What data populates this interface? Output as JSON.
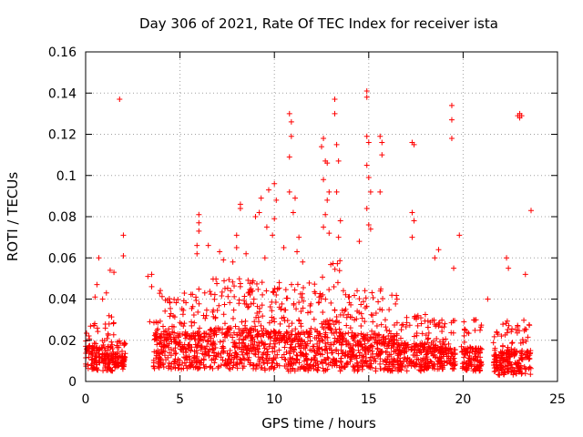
{
  "chart_data": {
    "type": "scatter",
    "title": "Day 306 of 2021, Rate Of TEC Index for receiver ista",
    "xlabel": "GPS time / hours",
    "ylabel": "ROTI / TECUs",
    "xlim": [
      0,
      25
    ],
    "ylim": [
      0,
      0.16
    ],
    "x_ticks": [
      0,
      5,
      10,
      15,
      20,
      25
    ],
    "x_tick_labels": [
      "0",
      "5",
      "10",
      "15",
      "20",
      "25"
    ],
    "y_ticks": [
      0,
      0.02,
      0.04,
      0.06,
      0.08,
      0.1,
      0.12,
      0.14,
      0.16
    ],
    "y_tick_labels": [
      "0",
      "0.02",
      "0.04",
      "0.06",
      "0.08",
      "0.1",
      "0.12",
      "0.14",
      "0.16"
    ],
    "grid": true,
    "marker": "+",
    "color": "#ff0000",
    "points": [
      [
        1.8,
        0.137
      ],
      [
        2.0,
        0.071
      ],
      [
        2.0,
        0.061
      ],
      [
        0.7,
        0.06
      ],
      [
        1.3,
        0.054
      ],
      [
        1.5,
        0.053
      ],
      [
        0.6,
        0.047
      ],
      [
        1.1,
        0.043
      ],
      [
        0.5,
        0.041
      ],
      [
        0.9,
        0.04
      ],
      [
        3.4,
        0.029
      ],
      [
        3.5,
        0.052
      ],
      [
        3.5,
        0.046
      ],
      [
        3.3,
        0.051
      ],
      [
        6.0,
        0.081
      ],
      [
        6.0,
        0.077
      ],
      [
        6.0,
        0.073
      ],
      [
        5.9,
        0.066
      ],
      [
        6.5,
        0.066
      ],
      [
        5.9,
        0.062
      ],
      [
        7.1,
        0.063
      ],
      [
        8.0,
        0.071
      ],
      [
        8.0,
        0.065
      ],
      [
        8.2,
        0.086
      ],
      [
        8.2,
        0.084
      ],
      [
        7.3,
        0.059
      ],
      [
        7.8,
        0.058
      ],
      [
        8.5,
        0.062
      ],
      [
        9.0,
        0.08
      ],
      [
        9.2,
        0.082
      ],
      [
        9.3,
        0.089
      ],
      [
        9.5,
        0.06
      ],
      [
        9.6,
        0.075
      ],
      [
        9.7,
        0.093
      ],
      [
        10.0,
        0.096
      ],
      [
        10.0,
        0.079
      ],
      [
        10.1,
        0.088
      ],
      [
        9.9,
        0.071
      ],
      [
        10.5,
        0.065
      ],
      [
        10.8,
        0.13
      ],
      [
        10.9,
        0.126
      ],
      [
        10.9,
        0.119
      ],
      [
        10.8,
        0.109
      ],
      [
        10.8,
        0.092
      ],
      [
        11.0,
        0.082
      ],
      [
        11.1,
        0.089
      ],
      [
        11.3,
        0.07
      ],
      [
        11.2,
        0.063
      ],
      [
        11.5,
        0.058
      ],
      [
        12.5,
        0.114
      ],
      [
        12.6,
        0.118
      ],
      [
        12.7,
        0.107
      ],
      [
        12.8,
        0.106
      ],
      [
        12.6,
        0.098
      ],
      [
        12.9,
        0.092
      ],
      [
        12.8,
        0.088
      ],
      [
        12.7,
        0.081
      ],
      [
        12.6,
        0.075
      ],
      [
        12.9,
        0.072
      ],
      [
        13.2,
        0.137
      ],
      [
        13.2,
        0.13
      ],
      [
        13.3,
        0.115
      ],
      [
        13.4,
        0.107
      ],
      [
        13.3,
        0.092
      ],
      [
        13.5,
        0.078
      ],
      [
        13.4,
        0.07
      ],
      [
        14.9,
        0.141
      ],
      [
        14.9,
        0.138
      ],
      [
        14.9,
        0.119
      ],
      [
        15.0,
        0.116
      ],
      [
        14.9,
        0.105
      ],
      [
        15.0,
        0.099
      ],
      [
        15.1,
        0.092
      ],
      [
        14.9,
        0.084
      ],
      [
        15.0,
        0.076
      ],
      [
        15.1,
        0.074
      ],
      [
        15.6,
        0.119
      ],
      [
        15.7,
        0.116
      ],
      [
        15.7,
        0.11
      ],
      [
        15.6,
        0.092
      ],
      [
        14.5,
        0.068
      ],
      [
        17.3,
        0.116
      ],
      [
        17.4,
        0.115
      ],
      [
        17.3,
        0.082
      ],
      [
        17.4,
        0.078
      ],
      [
        17.3,
        0.07
      ],
      [
        18.7,
        0.064
      ],
      [
        18.5,
        0.06
      ],
      [
        19.4,
        0.134
      ],
      [
        19.4,
        0.127
      ],
      [
        19.4,
        0.118
      ],
      [
        19.8,
        0.071
      ],
      [
        19.5,
        0.055
      ],
      [
        23.0,
        0.13
      ],
      [
        22.9,
        0.129
      ],
      [
        23.1,
        0.129
      ],
      [
        23.0,
        0.128
      ],
      [
        23.6,
        0.083
      ],
      [
        22.3,
        0.06
      ],
      [
        22.4,
        0.055
      ],
      [
        23.3,
        0.052
      ],
      [
        21.3,
        0.04
      ]
    ],
    "bands": [
      {
        "x0": 0.0,
        "x1": 1.5,
        "ymin": 0.005,
        "ymax": 0.032
      },
      {
        "x0": 1.5,
        "x1": 2.1,
        "ymin": 0.006,
        "ymax": 0.02
      },
      {
        "x0": 3.6,
        "x1": 6.5,
        "ymin": 0.006,
        "ymax": 0.045
      },
      {
        "x0": 6.5,
        "x1": 9.5,
        "ymin": 0.006,
        "ymax": 0.05
      },
      {
        "x0": 9.5,
        "x1": 12.5,
        "ymin": 0.005,
        "ymax": 0.048
      },
      {
        "x0": 12.5,
        "x1": 13.5,
        "ymin": 0.005,
        "ymax": 0.06
      },
      {
        "x0": 13.5,
        "x1": 16.5,
        "ymin": 0.005,
        "ymax": 0.045
      },
      {
        "x0": 16.5,
        "x1": 18.0,
        "ymin": 0.005,
        "ymax": 0.035
      },
      {
        "x0": 18.0,
        "x1": 19.6,
        "ymin": 0.006,
        "ymax": 0.03
      },
      {
        "x0": 19.9,
        "x1": 21.0,
        "ymin": 0.005,
        "ymax": 0.03
      },
      {
        "x0": 21.6,
        "x1": 23.6,
        "ymin": 0.003,
        "ymax": 0.03
      }
    ]
  }
}
